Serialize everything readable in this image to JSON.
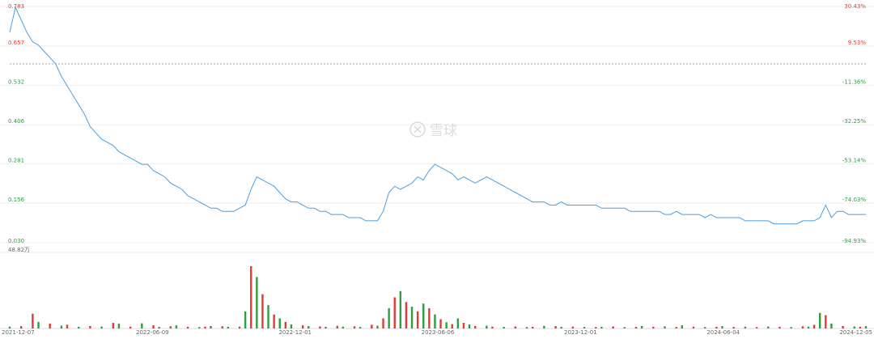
{
  "watermark": {
    "text": "雪球",
    "icon": "snowball-logo-icon"
  },
  "colors": {
    "line": "#4a9fe0",
    "up": "#e53935",
    "down": "#2e9e3f",
    "grid": "#eeeeee",
    "ref_line": "#aaaaaa"
  },
  "chart_data": [
    {
      "type": "line",
      "title": "",
      "xlabel": "",
      "ylabel": "",
      "x_ticks": [
        "2021-12-07",
        "2022-06-09",
        "2022-12-01",
        "2023-06-06",
        "2023-12-01",
        "2024-06-04",
        "2024-12-05"
      ],
      "left_ticks": [
        {
          "value": 0.783,
          "label": "0.783"
        },
        {
          "value": 0.657,
          "label": "0.657"
        },
        {
          "value": 0.532,
          "label": "0.532"
        },
        {
          "value": 0.406,
          "label": "0.406"
        },
        {
          "value": 0.281,
          "label": "0.281"
        },
        {
          "value": 0.156,
          "label": "0.156"
        },
        {
          "value": 0.03,
          "label": "0.030"
        }
      ],
      "right_ticks": [
        "30.43%",
        "9.53%",
        "-11.36%",
        "-32.25%",
        "-53.14%",
        "-74.03%",
        "-94.93%"
      ],
      "ylim": [
        0.03,
        0.783
      ],
      "reference_value": 0.6,
      "series": [
        {
          "points": [
            [
              0,
              0.7
            ],
            [
              1,
              0.78
            ],
            [
              2,
              0.74
            ],
            [
              3,
              0.7
            ],
            [
              4,
              0.67
            ],
            [
              5,
              0.66
            ],
            [
              6,
              0.64
            ],
            [
              7,
              0.62
            ],
            [
              8,
              0.6
            ],
            [
              9,
              0.56
            ],
            [
              10,
              0.53
            ],
            [
              11,
              0.5
            ],
            [
              12,
              0.47
            ],
            [
              13,
              0.44
            ],
            [
              14,
              0.4
            ],
            [
              15,
              0.38
            ],
            [
              16,
              0.36
            ],
            [
              17,
              0.35
            ],
            [
              18,
              0.34
            ],
            [
              19,
              0.32
            ],
            [
              20,
              0.31
            ],
            [
              21,
              0.3
            ],
            [
              22,
              0.29
            ],
            [
              23,
              0.28
            ],
            [
              24,
              0.28
            ],
            [
              25,
              0.26
            ],
            [
              26,
              0.25
            ],
            [
              27,
              0.24
            ],
            [
              28,
              0.22
            ],
            [
              29,
              0.21
            ],
            [
              30,
              0.2
            ],
            [
              31,
              0.18
            ],
            [
              32,
              0.17
            ],
            [
              33,
              0.16
            ],
            [
              34,
              0.15
            ],
            [
              35,
              0.14
            ],
            [
              36,
              0.14
            ],
            [
              37,
              0.13
            ],
            [
              38,
              0.13
            ],
            [
              39,
              0.13
            ],
            [
              40,
              0.14
            ],
            [
              41,
              0.15
            ],
            [
              42,
              0.2
            ],
            [
              43,
              0.24
            ],
            [
              44,
              0.23
            ],
            [
              45,
              0.22
            ],
            [
              46,
              0.21
            ],
            [
              47,
              0.19
            ],
            [
              48,
              0.17
            ],
            [
              49,
              0.16
            ],
            [
              50,
              0.16
            ],
            [
              51,
              0.15
            ],
            [
              52,
              0.14
            ],
            [
              53,
              0.14
            ],
            [
              54,
              0.13
            ],
            [
              55,
              0.13
            ],
            [
              56,
              0.12
            ],
            [
              57,
              0.12
            ],
            [
              58,
              0.12
            ],
            [
              59,
              0.11
            ],
            [
              60,
              0.11
            ],
            [
              61,
              0.11
            ],
            [
              62,
              0.1
            ],
            [
              63,
              0.1
            ],
            [
              64,
              0.1
            ],
            [
              65,
              0.13
            ],
            [
              66,
              0.19
            ],
            [
              67,
              0.21
            ],
            [
              68,
              0.2
            ],
            [
              69,
              0.21
            ],
            [
              70,
              0.22
            ],
            [
              71,
              0.24
            ],
            [
              72,
              0.23
            ],
            [
              73,
              0.26
            ],
            [
              74,
              0.28
            ],
            [
              75,
              0.27
            ],
            [
              76,
              0.26
            ],
            [
              77,
              0.25
            ],
            [
              78,
              0.23
            ],
            [
              79,
              0.24
            ],
            [
              80,
              0.23
            ],
            [
              81,
              0.22
            ],
            [
              82,
              0.23
            ],
            [
              83,
              0.24
            ],
            [
              84,
              0.23
            ],
            [
              85,
              0.22
            ],
            [
              86,
              0.21
            ],
            [
              87,
              0.2
            ],
            [
              88,
              0.19
            ],
            [
              89,
              0.18
            ],
            [
              90,
              0.17
            ],
            [
              91,
              0.16
            ],
            [
              92,
              0.16
            ],
            [
              93,
              0.16
            ],
            [
              94,
              0.15
            ],
            [
              95,
              0.15
            ],
            [
              96,
              0.16
            ],
            [
              97,
              0.15
            ],
            [
              98,
              0.15
            ],
            [
              99,
              0.15
            ],
            [
              100,
              0.15
            ],
            [
              101,
              0.15
            ],
            [
              102,
              0.15
            ],
            [
              103,
              0.14
            ],
            [
              104,
              0.14
            ],
            [
              105,
              0.14
            ],
            [
              106,
              0.14
            ],
            [
              107,
              0.14
            ],
            [
              108,
              0.13
            ],
            [
              109,
              0.13
            ],
            [
              110,
              0.13
            ],
            [
              111,
              0.13
            ],
            [
              112,
              0.13
            ],
            [
              113,
              0.13
            ],
            [
              114,
              0.12
            ],
            [
              115,
              0.12
            ],
            [
              116,
              0.13
            ],
            [
              117,
              0.12
            ],
            [
              118,
              0.12
            ],
            [
              119,
              0.12
            ],
            [
              120,
              0.12
            ],
            [
              121,
              0.11
            ],
            [
              122,
              0.12
            ],
            [
              123,
              0.11
            ],
            [
              124,
              0.11
            ],
            [
              125,
              0.11
            ],
            [
              126,
              0.11
            ],
            [
              127,
              0.11
            ],
            [
              128,
              0.1
            ],
            [
              129,
              0.1
            ],
            [
              130,
              0.1
            ],
            [
              131,
              0.1
            ],
            [
              132,
              0.1
            ],
            [
              133,
              0.09
            ],
            [
              134,
              0.09
            ],
            [
              135,
              0.09
            ],
            [
              136,
              0.09
            ],
            [
              137,
              0.09
            ],
            [
              138,
              0.1
            ],
            [
              139,
              0.1
            ],
            [
              140,
              0.1
            ],
            [
              141,
              0.11
            ],
            [
              142,
              0.15
            ],
            [
              143,
              0.11
            ],
            [
              144,
              0.13
            ],
            [
              145,
              0.13
            ],
            [
              146,
              0.12
            ],
            [
              147,
              0.12
            ],
            [
              148,
              0.12
            ],
            [
              149,
              0.12
            ]
          ]
        }
      ]
    },
    {
      "type": "bar",
      "title": "",
      "ylabel": "",
      "max_label": "48.82万",
      "ylim": [
        0,
        48.82
      ],
      "volume_ticks": [
        {
          "value": 48.82,
          "label": "48.82万"
        }
      ],
      "bars": [
        [
          0,
          1.2,
          "down"
        ],
        [
          2,
          1.5,
          "up"
        ],
        [
          4,
          9.5,
          "up"
        ],
        [
          5,
          4.2,
          "down"
        ],
        [
          7,
          3.1,
          "up"
        ],
        [
          9,
          1.8,
          "down"
        ],
        [
          10,
          2.4,
          "up"
        ],
        [
          12,
          1.1,
          "down"
        ],
        [
          14,
          1.6,
          "up"
        ],
        [
          16,
          1.3,
          "down"
        ],
        [
          18,
          3.6,
          "up"
        ],
        [
          19,
          3.1,
          "down"
        ],
        [
          21,
          1.2,
          "up"
        ],
        [
          23,
          3.3,
          "down"
        ],
        [
          25,
          2.1,
          "up"
        ],
        [
          26,
          1.0,
          "down"
        ],
        [
          28,
          1.4,
          "up"
        ],
        [
          29,
          2.0,
          "down"
        ],
        [
          31,
          1.1,
          "up"
        ],
        [
          33,
          0.9,
          "down"
        ],
        [
          34,
          1.2,
          "up"
        ],
        [
          35,
          1.6,
          "down"
        ],
        [
          37,
          1.4,
          "up"
        ],
        [
          38,
          1.1,
          "down"
        ],
        [
          40,
          1.2,
          "up"
        ],
        [
          41,
          11.0,
          "down"
        ],
        [
          42,
          40.0,
          "up"
        ],
        [
          43,
          33.0,
          "down"
        ],
        [
          44,
          22.0,
          "up"
        ],
        [
          45,
          15.0,
          "down"
        ],
        [
          46,
          9.0,
          "up"
        ],
        [
          47,
          6.5,
          "down"
        ],
        [
          48,
          4.2,
          "up"
        ],
        [
          49,
          2.6,
          "down"
        ],
        [
          51,
          2.0,
          "up"
        ],
        [
          52,
          1.5,
          "down"
        ],
        [
          54,
          1.3,
          "up"
        ],
        [
          55,
          1.1,
          "down"
        ],
        [
          57,
          1.7,
          "up"
        ],
        [
          58,
          1.2,
          "down"
        ],
        [
          60,
          1.4,
          "up"
        ],
        [
          61,
          1.0,
          "down"
        ],
        [
          63,
          2.4,
          "up"
        ],
        [
          64,
          1.8,
          "down"
        ],
        [
          65,
          6.5,
          "up"
        ],
        [
          66,
          13.0,
          "down"
        ],
        [
          67,
          20.0,
          "up"
        ],
        [
          68,
          24.0,
          "down"
        ],
        [
          69,
          17.0,
          "up"
        ],
        [
          70,
          14.0,
          "down"
        ],
        [
          71,
          11.0,
          "up"
        ],
        [
          72,
          16.0,
          "down"
        ],
        [
          73,
          13.0,
          "up"
        ],
        [
          74,
          9.0,
          "down"
        ],
        [
          75,
          6.0,
          "up"
        ],
        [
          76,
          4.0,
          "down"
        ],
        [
          77,
          2.8,
          "up"
        ],
        [
          78,
          6.5,
          "down"
        ],
        [
          79,
          3.6,
          "up"
        ],
        [
          80,
          2.6,
          "down"
        ],
        [
          81,
          1.6,
          "up"
        ],
        [
          83,
          1.8,
          "down"
        ],
        [
          84,
          1.2,
          "up"
        ],
        [
          86,
          1.0,
          "down"
        ],
        [
          88,
          1.3,
          "up"
        ],
        [
          90,
          0.9,
          "down"
        ],
        [
          91,
          1.1,
          "up"
        ],
        [
          93,
          1.7,
          "down"
        ],
        [
          95,
          1.5,
          "up"
        ],
        [
          96,
          1.1,
          "down"
        ],
        [
          98,
          1.2,
          "up"
        ],
        [
          100,
          1.0,
          "down"
        ],
        [
          102,
          0.9,
          "up"
        ],
        [
          103,
          1.1,
          "down"
        ],
        [
          105,
          1.3,
          "up"
        ],
        [
          107,
          0.9,
          "down"
        ],
        [
          109,
          1.0,
          "up"
        ],
        [
          110,
          1.6,
          "down"
        ],
        [
          112,
          1.1,
          "up"
        ],
        [
          114,
          1.4,
          "down"
        ],
        [
          116,
          1.0,
          "up"
        ],
        [
          117,
          2.0,
          "down"
        ],
        [
          119,
          1.2,
          "up"
        ],
        [
          121,
          0.9,
          "down"
        ],
        [
          123,
          1.1,
          "up"
        ],
        [
          124,
          1.5,
          "down"
        ],
        [
          126,
          1.0,
          "up"
        ],
        [
          128,
          1.2,
          "down"
        ],
        [
          130,
          0.9,
          "up"
        ],
        [
          132,
          1.3,
          "down"
        ],
        [
          134,
          1.1,
          "up"
        ],
        [
          136,
          0.9,
          "down"
        ],
        [
          138,
          1.4,
          "up"
        ],
        [
          139,
          1.2,
          "down"
        ],
        [
          140,
          2.4,
          "up"
        ],
        [
          141,
          10.0,
          "down"
        ],
        [
          142,
          8.5,
          "up"
        ],
        [
          143,
          3.2,
          "down"
        ],
        [
          145,
          1.6,
          "up"
        ],
        [
          147,
          1.3,
          "down"
        ],
        [
          148,
          1.1,
          "up"
        ],
        [
          149,
          1.5,
          "down"
        ]
      ]
    }
  ]
}
